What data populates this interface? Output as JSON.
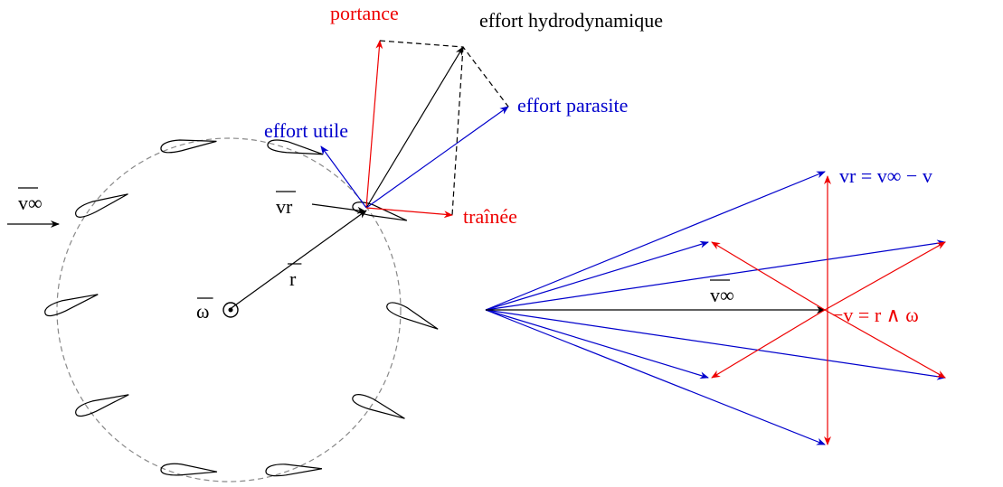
{
  "labels": {
    "lift": "portance",
    "hydro": "effort hydrodynamique",
    "parasite": "effort parasite",
    "useful": "effort utile",
    "drag": "traînée",
    "v_inf_left": "v∞",
    "v_r": "vr",
    "r": "r",
    "omega": "ω",
    "relation_vr": "vr = v∞ − v",
    "v_inf_right": "v∞",
    "relation_v": "−v = r ∧ ω"
  }
}
